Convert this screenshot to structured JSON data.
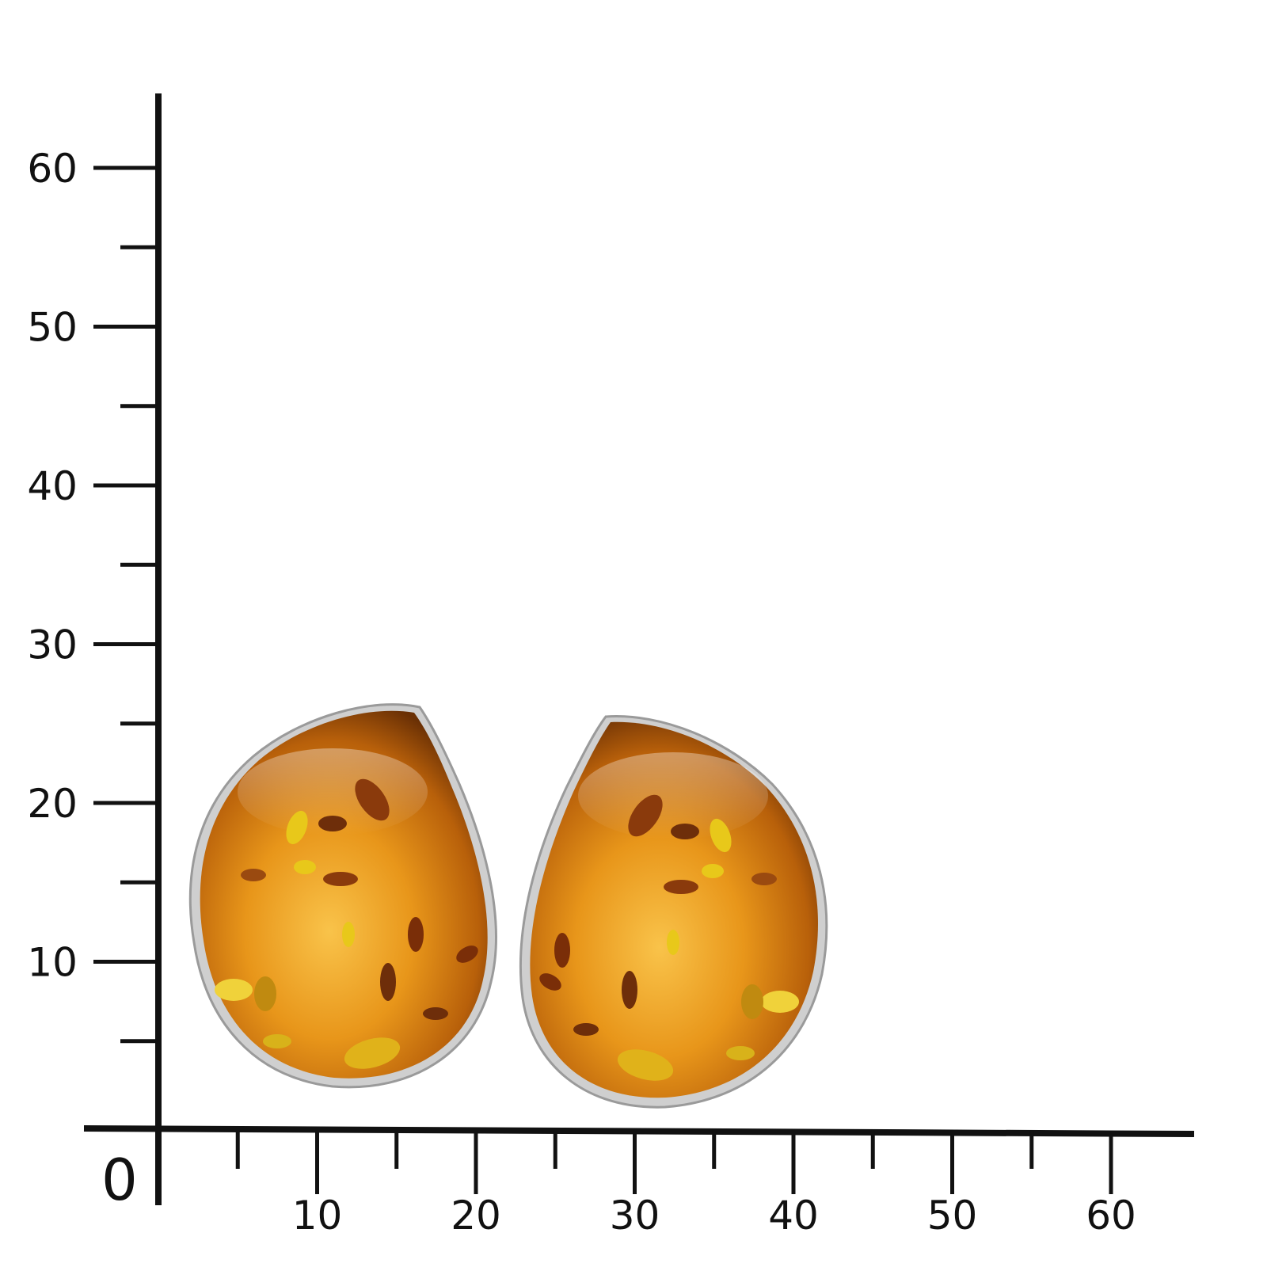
{
  "ruler": {
    "origin_label": "0",
    "x_axis": {
      "range": [
        0,
        65
      ],
      "tick_labels": [
        "10",
        "20",
        "30",
        "40",
        "50",
        "60"
      ],
      "label_values": [
        10,
        20,
        30,
        40,
        50,
        60
      ],
      "minor_tick_values": [
        5,
        15,
        25,
        35,
        45,
        55
      ]
    },
    "y_axis": {
      "range": [
        0,
        65
      ],
      "tick_labels": [
        "10",
        "20",
        "30",
        "40",
        "50",
        "60"
      ],
      "label_values": [
        10,
        20,
        30,
        40,
        50,
        60
      ],
      "minor_tick_values": [
        5,
        15,
        25,
        35,
        45,
        55
      ]
    },
    "line_color": "#111111"
  },
  "product": {
    "description_icon": "amber-teardrop-earrings",
    "colors": {
      "amber_light": "#f6b83a",
      "amber_mid": "#d98a12",
      "amber_dark": "#7a3c06",
      "bezel_silver": "#c9c9c9",
      "inclusion_gold": "#e8c81a",
      "inclusion_brown": "#6e2e0a"
    }
  }
}
